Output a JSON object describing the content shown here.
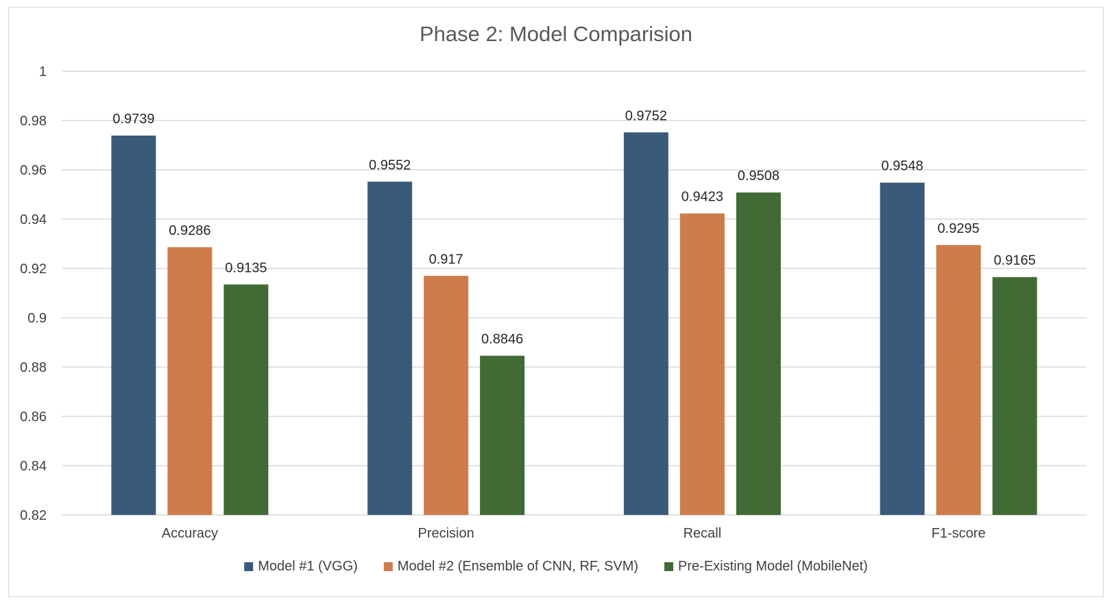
{
  "chart_data": {
    "type": "bar",
    "title": "Phase 2: Model Comparision",
    "xlabel": "",
    "ylabel": "",
    "categories": [
      "Accuracy",
      "Precision",
      "Recall",
      "F1-score"
    ],
    "series": [
      {
        "name": "Model #1 (VGG)",
        "color": "#3a5a7a",
        "values": [
          0.9739,
          0.9552,
          0.9752,
          0.9548
        ]
      },
      {
        "name": "Model #2 (Ensemble of CNN, RF, SVM)",
        "color": "#cd7c4a",
        "values": [
          0.9286,
          0.917,
          0.9423,
          0.9295
        ]
      },
      {
        "name": "Pre-Existing Model (MobileNet)",
        "color": "#416a34",
        "values": [
          0.9135,
          0.8846,
          0.9508,
          0.9165
        ]
      }
    ],
    "ylim": [
      0.82,
      1
    ],
    "yticks": [
      "0.82",
      "0.84",
      "0.86",
      "0.88",
      "0.9",
      "0.92",
      "0.94",
      "0.96",
      "0.98",
      "1"
    ],
    "grid": true,
    "legend_position": "bottom"
  }
}
